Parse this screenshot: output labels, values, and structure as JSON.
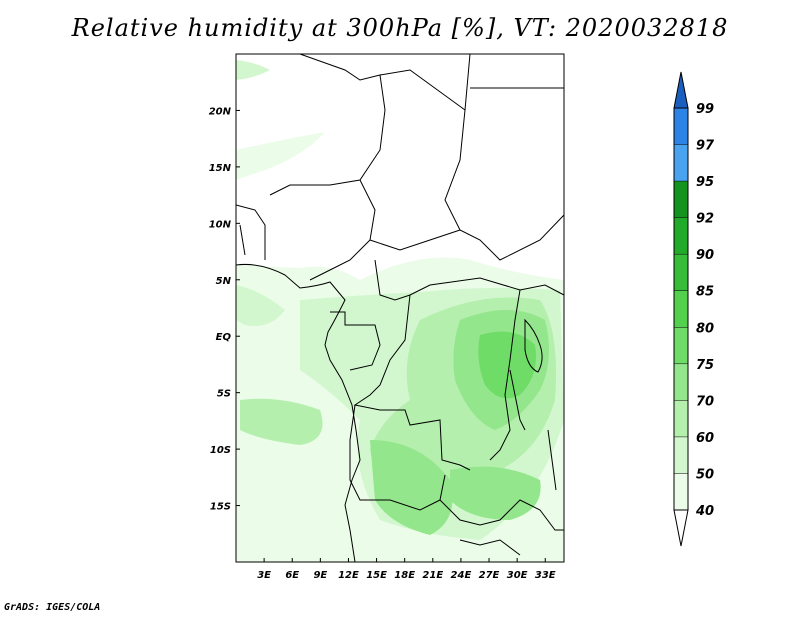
{
  "title": "Relative humidity at 300hPa [%], VT: 2020032818",
  "credit": "GrADS: IGES/COLA",
  "map": {
    "lon_range": [
      0,
      35
    ],
    "lat_range": [
      -20,
      25
    ],
    "lat_ticks": [
      {
        "lat": 20,
        "label": "20N"
      },
      {
        "lat": 15,
        "label": "15N"
      },
      {
        "lat": 10,
        "label": "10N"
      },
      {
        "lat": 5,
        "label": "5N"
      },
      {
        "lat": 0,
        "label": "EQ"
      },
      {
        "lat": -5,
        "label": "5S"
      },
      {
        "lat": -10,
        "label": "10S"
      },
      {
        "lat": -15,
        "label": "15S"
      }
    ],
    "lon_ticks": [
      {
        "lon": 3,
        "label": "3E"
      },
      {
        "lon": 6,
        "label": "6E"
      },
      {
        "lon": 9,
        "label": "9E"
      },
      {
        "lon": 12,
        "label": "12E"
      },
      {
        "lon": 15,
        "label": "15E"
      },
      {
        "lon": 18,
        "label": "18E"
      },
      {
        "lon": 21,
        "label": "21E"
      },
      {
        "lon": 24,
        "label": "24E"
      },
      {
        "lon": 27,
        "label": "27E"
      },
      {
        "lon": 30,
        "label": "30E"
      },
      {
        "lon": 33,
        "label": "33E"
      }
    ]
  },
  "colorbar": {
    "levels": [
      {
        "label": "99",
        "color": "#1f6fd1"
      },
      {
        "label": "97",
        "color": "#2c84e6"
      },
      {
        "label": "95",
        "color": "#4aa3ef"
      },
      {
        "label": "92",
        "color": "#14941e"
      },
      {
        "label": "90",
        "color": "#22aa2a"
      },
      {
        "label": "85",
        "color": "#37bd3a"
      },
      {
        "label": "80",
        "color": "#52d04e"
      },
      {
        "label": "75",
        "color": "#6fdc68"
      },
      {
        "label": "70",
        "color": "#93e68b"
      },
      {
        "label": "60",
        "color": "#b4efad"
      },
      {
        "label": "50",
        "color": "#d2f7ce"
      },
      {
        "label": "40",
        "color": "#ebfce9"
      }
    ],
    "top_arrow_color": "#1a5fc0",
    "bottom_arrow_color": "#ffffff"
  }
}
